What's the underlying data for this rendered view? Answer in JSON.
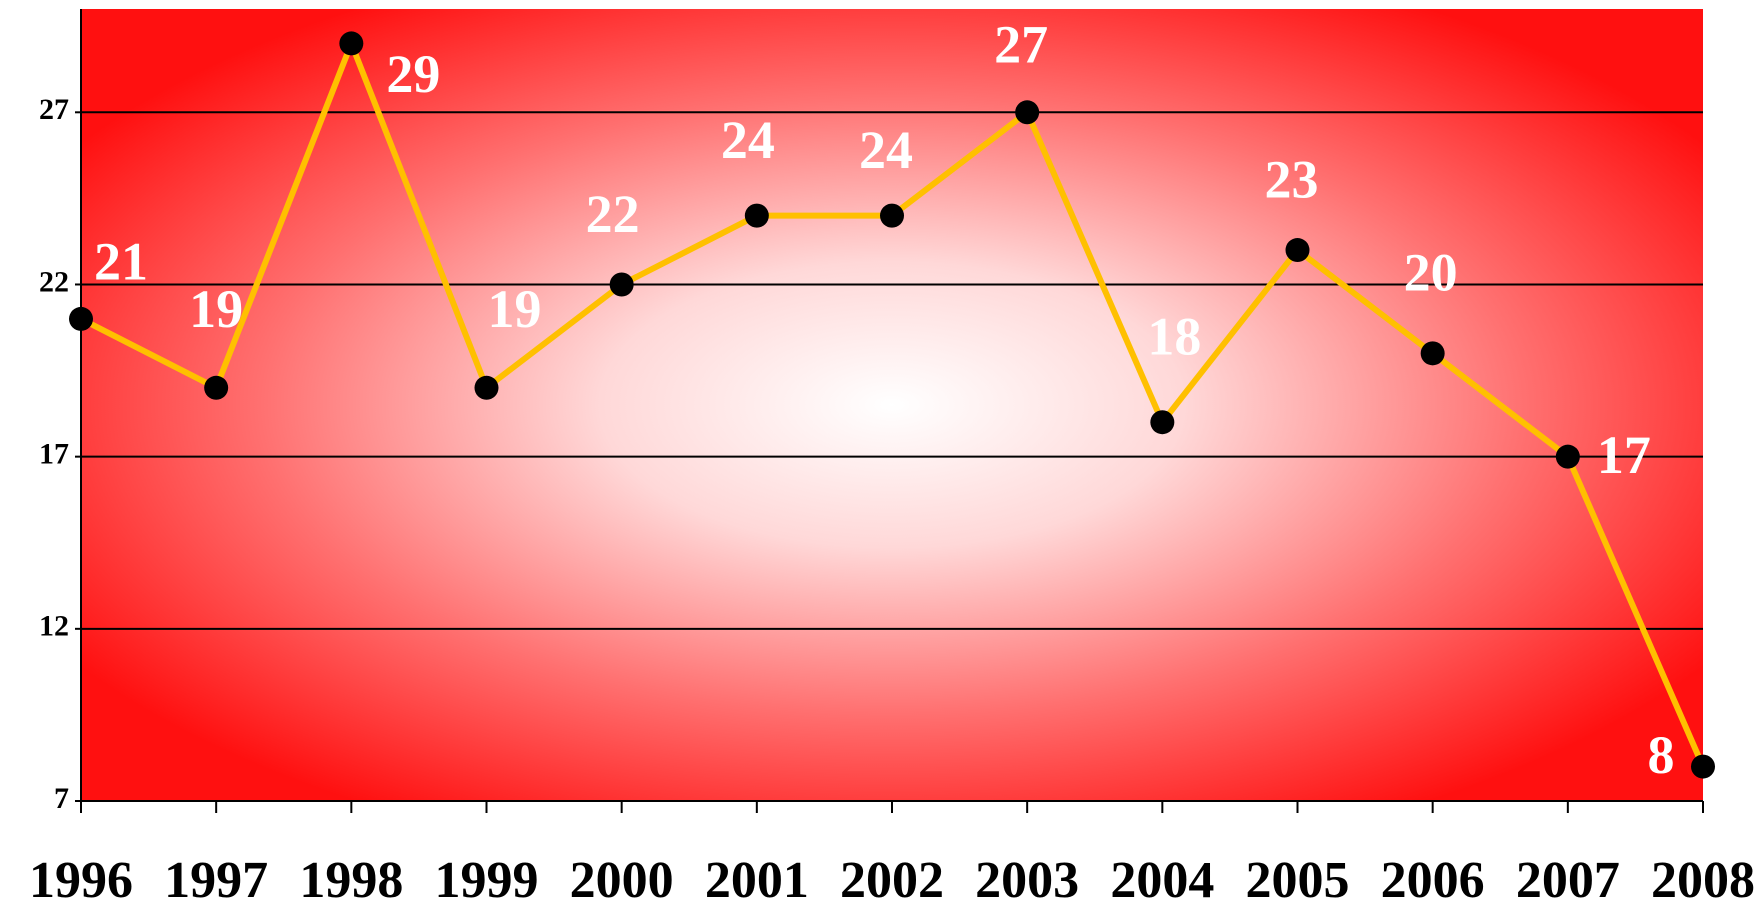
{
  "chart_data": {
    "type": "line",
    "categories": [
      "1996",
      "1997",
      "1998",
      "1999",
      "2000",
      "2001",
      "2002",
      "2003",
      "2004",
      "2005",
      "2006",
      "2007",
      "2008"
    ],
    "series": [
      {
        "color": "#ffc000",
        "values": [
          21,
          19,
          29,
          19,
          22,
          24,
          24,
          27,
          18,
          23,
          20,
          17,
          8
        ]
      }
    ],
    "ylim": [
      7,
      30
    ],
    "yticks": [
      7,
      12,
      17,
      22,
      27
    ],
    "grid": true,
    "marker_color": "#000000"
  }
}
